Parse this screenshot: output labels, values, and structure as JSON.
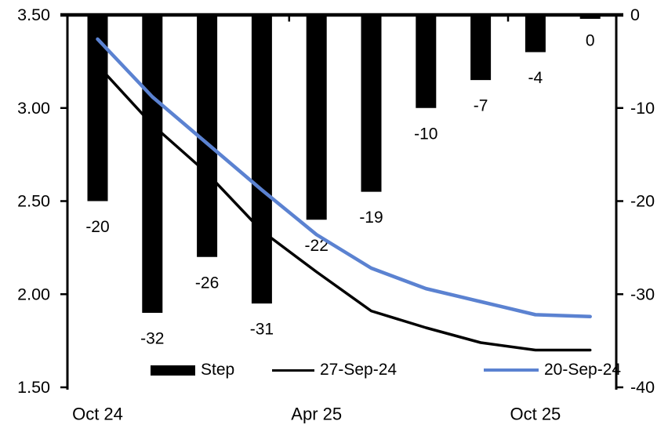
{
  "chart_data": {
    "type": "combo_bar_line",
    "title": "",
    "categories_count": 10,
    "x_axis": {
      "tick_labels": [
        {
          "label": "Oct 24",
          "category_index": 0
        },
        {
          "label": "Apr 25",
          "category_index": 4
        },
        {
          "label": "Oct 25",
          "category_index": 8
        }
      ],
      "boundary_tick_positions": [
        3.5,
        7.5
      ]
    },
    "left_axis": {
      "min": 1.5,
      "max": 3.5,
      "ticks": [
        "3.50",
        "3.00",
        "2.50",
        "2.00",
        "1.50"
      ]
    },
    "right_axis": {
      "min": -40,
      "max": 0,
      "ticks": [
        "0",
        "-10",
        "-20",
        "-30",
        "-40"
      ]
    },
    "bar_series": {
      "name": "Step",
      "axis": "right",
      "color": "#000000",
      "values": [
        -20,
        -32,
        -26,
        -31,
        -22,
        -19,
        -10,
        -7,
        -4,
        0
      ],
      "data_labels": [
        "-20",
        "-32",
        "-26",
        "-31",
        "-22",
        "-19",
        "-10",
        "-7",
        "-4",
        "0"
      ]
    },
    "line_series": [
      {
        "name": "27-Sep-24",
        "axis": "left",
        "color": "#000000",
        "values": [
          3.23,
          2.91,
          2.65,
          2.34,
          2.12,
          1.91,
          1.82,
          1.74,
          1.7,
          1.7
        ]
      },
      {
        "name": "20-Sep-24",
        "axis": "left",
        "color": "#5b82d1",
        "values": [
          3.37,
          3.06,
          2.81,
          2.56,
          2.32,
          2.14,
          2.03,
          1.96,
          1.89,
          1.88
        ]
      }
    ],
    "legend": {
      "position": "bottom-inside",
      "entries": [
        "Step",
        "27-Sep-24",
        "20-Sep-24"
      ]
    },
    "grid": "off",
    "background": "#ffffff"
  }
}
